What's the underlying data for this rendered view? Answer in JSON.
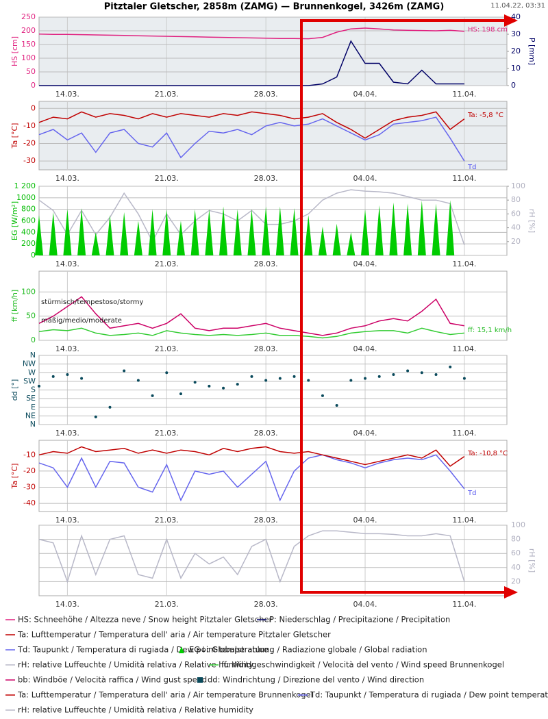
{
  "title": "Pitztaler Gletscher, 2858m (ZAMG) — Brunnenkogel, 3426m (ZAMG)",
  "timestamp": "11.04.22, 03:31",
  "chart_data": [
    {
      "type": "line",
      "x": [
        "12.03.",
        "13.03.",
        "14.03.",
        "15.03.",
        "16.03.",
        "17.03.",
        "18.03.",
        "19.03.",
        "20.03.",
        "21.03.",
        "22.03.",
        "23.03.",
        "24.03.",
        "25.03.",
        "26.03.",
        "27.03.",
        "28.03.",
        "29.03.",
        "30.03.",
        "31.03.",
        "01.04.",
        "02.04.",
        "03.04.",
        "04.04.",
        "05.04.",
        "06.04.",
        "07.04.",
        "08.04.",
        "09.04.",
        "10.04.",
        "11.04."
      ],
      "xlim": [
        "12.03.",
        "14.04."
      ],
      "xticks": [
        "14.03.",
        "21.03.",
        "28.03.",
        "04.04.",
        "11.04."
      ],
      "ylabel": "HS [cm]",
      "ycolor": "#e0207f",
      "ylim": [
        0,
        250
      ],
      "yticks": [
        0,
        50,
        100,
        150,
        200,
        250
      ],
      "y2label": "P [mm]",
      "y2color": "#000066",
      "y2lim": [
        0,
        40
      ],
      "y2ticks": [
        0,
        10,
        20,
        30,
        40
      ],
      "grid": true,
      "background": "#e9edf0",
      "annotations": [
        {
          "text": "HS: 198 cm",
          "color": "#e0207f"
        }
      ],
      "series": [
        {
          "name": "HS: Schneehöhe / Altezza neve / Snow height  Pitztaler Gletscher",
          "color": "#e0207f",
          "style": "line",
          "values": [
            188,
            187,
            187,
            186,
            185,
            184,
            183,
            182,
            181,
            180,
            179,
            178,
            177,
            176,
            175,
            174,
            173,
            172,
            172,
            171,
            176,
            195,
            207,
            210,
            207,
            203,
            202,
            201,
            200,
            202,
            198
          ]
        },
        {
          "name": "P: Niederschlag / Precipitazione / Precipitation",
          "color": "#000066",
          "style": "line",
          "axis": "y2",
          "values": [
            0,
            0,
            0,
            0,
            0,
            0,
            0,
            0,
            0,
            0,
            0,
            0,
            0,
            0,
            0,
            0,
            0,
            0,
            0,
            0,
            1,
            5,
            26,
            13,
            13,
            2,
            1,
            9,
            1,
            1,
            1
          ]
        }
      ]
    },
    {
      "type": "line",
      "x": [
        "12.03.",
        "13.03.",
        "14.03.",
        "15.03.",
        "16.03.",
        "17.03.",
        "18.03.",
        "19.03.",
        "20.03.",
        "21.03.",
        "22.03.",
        "23.03.",
        "24.03.",
        "25.03.",
        "26.03.",
        "27.03.",
        "28.03.",
        "29.03.",
        "30.03.",
        "31.03.",
        "01.04.",
        "02.04.",
        "03.04.",
        "04.04.",
        "05.04.",
        "06.04.",
        "07.04.",
        "08.04.",
        "09.04.",
        "10.04.",
        "11.04."
      ],
      "xlim": [
        "12.03.",
        "14.04."
      ],
      "xticks": [
        "14.03.",
        "21.03.",
        "28.03.",
        "04.04.",
        "11.04."
      ],
      "ylabel": "Ta [°C]",
      "ycolor": "#c00000",
      "ylim": [
        -35,
        4
      ],
      "yticks": [
        -30,
        -20,
        -10,
        0
      ],
      "grid": true,
      "background": "#e9edf0",
      "annotations": [
        {
          "text": "Ta: -5,8 °C",
          "color": "#c00000"
        },
        {
          "text": "Td",
          "color": "#5555ee"
        }
      ],
      "series": [
        {
          "name": "Ta: Lufttemperatur / Temperatura dell' aria / Air temperature  Pitztaler Gletscher",
          "color": "#c00000",
          "style": "line",
          "values": [
            -8,
            -5,
            -6,
            -2,
            -5,
            -3,
            -4,
            -6,
            -3,
            -5,
            -3,
            -4,
            -5,
            -3,
            -4,
            -2,
            -3,
            -4,
            -6,
            -5,
            -3,
            -8,
            -12,
            -17,
            -12,
            -7,
            -5,
            -4,
            -2,
            -12,
            -6
          ]
        },
        {
          "name": "Td: Taupunkt / Temperatura di rugiada / Dew point temperature",
          "color": "#6666ee",
          "style": "line",
          "values": [
            -15,
            -12,
            -18,
            -14,
            -25,
            -14,
            -12,
            -20,
            -22,
            -14,
            -28,
            -20,
            -13,
            -14,
            -12,
            -15,
            -10,
            -8,
            -10,
            -9,
            -6,
            -10,
            -14,
            -18,
            -15,
            -9,
            -8,
            -7,
            -5,
            -17,
            -30
          ]
        }
      ]
    },
    {
      "type": "line",
      "x": [
        "12.03.",
        "13.03.",
        "14.03.",
        "15.03.",
        "16.03.",
        "17.03.",
        "18.03.",
        "19.03.",
        "20.03.",
        "21.03.",
        "22.03.",
        "23.03.",
        "24.03.",
        "25.03.",
        "26.03.",
        "27.03.",
        "28.03.",
        "29.03.",
        "30.03.",
        "31.03.",
        "01.04.",
        "02.04.",
        "03.04.",
        "04.04.",
        "05.04.",
        "06.04.",
        "07.04.",
        "08.04.",
        "09.04.",
        "10.04.",
        "11.04."
      ],
      "xlim": [
        "12.03.",
        "14.04."
      ],
      "xticks": [
        "14.03.",
        "21.03.",
        "28.03.",
        "04.04.",
        "11.04."
      ],
      "ylabel": "EG [W/m²]",
      "ycolor": "#00bb00",
      "ylim": [
        0,
        1200
      ],
      "yticks": [
        0,
        200,
        400,
        600,
        800,
        1000,
        {
          "value": 1200,
          "label": "1 200"
        }
      ],
      "y2label": "rH [%]",
      "y2color": "#b0b0c0",
      "y2lim": [
        0,
        100
      ],
      "y2ticks": [
        20,
        40,
        60,
        80,
        100
      ],
      "grid": true,
      "background": "#ffffff",
      "annotations": [],
      "series": [
        {
          "name": "EG↓: Globalstrahlung / Radiazione globale / Global radiation",
          "color": "#00cc00",
          "style": "spike",
          "values": [
            700,
            750,
            800,
            820,
            400,
            700,
            750,
            600,
            800,
            800,
            600,
            800,
            800,
            850,
            800,
            800,
            850,
            850,
            820,
            700,
            500,
            550,
            400,
            800,
            870,
            920,
            900,
            950,
            900,
            960,
            0
          ]
        },
        {
          "name": "rH: relative Luffeuchte / Umidità relativa / Relative humidity",
          "color": "#b8b8c8",
          "style": "line",
          "axis": "y2",
          "values": [
            80,
            65,
            30,
            65,
            30,
            55,
            90,
            60,
            20,
            60,
            30,
            50,
            65,
            60,
            50,
            65,
            45,
            45,
            50,
            60,
            80,
            90,
            95,
            93,
            92,
            90,
            85,
            80,
            80,
            75,
            15
          ]
        }
      ]
    },
    {
      "type": "line",
      "x": [
        "12.03.",
        "13.03.",
        "14.03.",
        "15.03.",
        "16.03.",
        "17.03.",
        "18.03.",
        "19.03.",
        "20.03.",
        "21.03.",
        "22.03.",
        "23.03.",
        "24.03.",
        "25.03.",
        "26.03.",
        "27.03.",
        "28.03.",
        "29.03.",
        "30.03.",
        "31.03.",
        "01.04.",
        "02.04.",
        "03.04.",
        "04.04.",
        "05.04.",
        "06.04.",
        "07.04.",
        "08.04.",
        "09.04.",
        "10.04.",
        "11.04."
      ],
      "xlim": [
        "12.03.",
        "14.04."
      ],
      "xticks": [
        "14.03.",
        "21.03.",
        "28.03.",
        "04.04.",
        "11.04."
      ],
      "ylabel": "ff [km/h]",
      "ycolor": "#22bb22",
      "ylim": [
        0,
        143
      ],
      "yticks": [
        0,
        50,
        100
      ],
      "grid": true,
      "background": "#ffffff",
      "annotations": [
        {
          "text": "stürmisch/tempestoso/stormy",
          "color": "#222222"
        },
        {
          "text": "mäßig/medio/moderate",
          "color": "#222222"
        },
        {
          "text": "ff: 15,1 km/h",
          "color": "#22bb22"
        }
      ],
      "series": [
        {
          "name": "ff: Windgeschwindigkeit / Velocità del vento / Wind speed  Brunnenkogel",
          "color": "#33cc33",
          "style": "line",
          "values": [
            18,
            22,
            20,
            25,
            15,
            10,
            12,
            15,
            10,
            20,
            15,
            12,
            10,
            12,
            10,
            12,
            15,
            10,
            10,
            8,
            5,
            8,
            15,
            18,
            20,
            20,
            15,
            25,
            18,
            12,
            15
          ]
        },
        {
          "name": "bb: Windböe / Velocità raffica / Wind gust speed",
          "color": "#cc0066",
          "style": "line",
          "values": [
            35,
            50,
            70,
            90,
            55,
            25,
            30,
            35,
            25,
            35,
            55,
            25,
            20,
            25,
            25,
            30,
            35,
            25,
            20,
            15,
            10,
            15,
            25,
            30,
            40,
            45,
            40,
            60,
            85,
            35,
            30
          ]
        }
      ]
    },
    {
      "type": "scatter",
      "x": [
        "12.03.",
        "13.03.",
        "14.03.",
        "15.03.",
        "16.03.",
        "17.03.",
        "18.03.",
        "19.03.",
        "20.03.",
        "21.03.",
        "22.03.",
        "23.03.",
        "24.03.",
        "25.03.",
        "26.03.",
        "27.03.",
        "28.03.",
        "29.03.",
        "30.03.",
        "31.03.",
        "01.04.",
        "02.04.",
        "03.04.",
        "04.04.",
        "05.04.",
        "06.04.",
        "07.04.",
        "08.04.",
        "09.04.",
        "10.04.",
        "11.04."
      ],
      "xlim": [
        "12.03.",
        "14.04."
      ],
      "xticks": [
        "14.03.",
        "21.03.",
        "28.03.",
        "04.04.",
        "11.04."
      ],
      "ylabel": "dd [°]",
      "ycolor": "#0a4a5c",
      "ylim": [
        0,
        360
      ],
      "yticks": [
        {
          "value": 0,
          "label": "N"
        },
        {
          "value": 45,
          "label": "NE"
        },
        {
          "value": 90,
          "label": "E"
        },
        {
          "value": 135,
          "label": "SE"
        },
        {
          "value": 180,
          "label": "S"
        },
        {
          "value": 225,
          "label": "SW"
        },
        {
          "value": 270,
          "label": "W"
        },
        {
          "value": 315,
          "label": "NW"
        },
        {
          "value": 360,
          "label": "N"
        }
      ],
      "grid": true,
      "background": "#ffffff",
      "annotations": [],
      "series": [
        {
          "name": "dd: Windrichtung / Direzione del vento / Wind direction",
          "color": "#0a4a5c",
          "style": "dots",
          "values": [
            200,
            250,
            260,
            240,
            40,
            90,
            280,
            230,
            150,
            270,
            160,
            220,
            200,
            190,
            210,
            250,
            230,
            240,
            250,
            230,
            150,
            100,
            230,
            240,
            250,
            260,
            280,
            270,
            260,
            300,
            240
          ]
        }
      ]
    },
    {
      "type": "line",
      "x": [
        "12.03.",
        "13.03.",
        "14.03.",
        "15.03.",
        "16.03.",
        "17.03.",
        "18.03.",
        "19.03.",
        "20.03.",
        "21.03.",
        "22.03.",
        "23.03.",
        "24.03.",
        "25.03.",
        "26.03.",
        "27.03.",
        "28.03.",
        "29.03.",
        "30.03.",
        "31.03.",
        "01.04.",
        "02.04.",
        "03.04.",
        "04.04.",
        "05.04.",
        "06.04.",
        "07.04.",
        "08.04.",
        "09.04.",
        "10.04.",
        "11.04."
      ],
      "xlim": [
        "12.03.",
        "14.04."
      ],
      "xticks": [
        "14.03.",
        "21.03.",
        "28.03.",
        "04.04.",
        "11.04."
      ],
      "ylabel": "Ta [°C]",
      "ycolor": "#c00000",
      "ylim": [
        -45,
        -1
      ],
      "yticks": [
        -40,
        -30,
        -20,
        -10
      ],
      "grid": true,
      "background": "#ffffff",
      "annotations": [
        {
          "text": "Ta: -10,8 °C",
          "color": "#c00000"
        },
        {
          "text": "Td",
          "color": "#5555ee"
        }
      ],
      "series": [
        {
          "name": "Ta: Lufttemperatur / Temperatura dell' aria / Air temperature  Brunnenkogel",
          "color": "#c00000",
          "style": "line",
          "values": [
            -10,
            -8,
            -9,
            -5,
            -8,
            -7,
            -6,
            -9,
            -7,
            -9,
            -7,
            -8,
            -10,
            -6,
            -8,
            -6,
            -5,
            -8,
            -9,
            -8,
            -10,
            -12,
            -14,
            -16,
            -14,
            -12,
            -10,
            -12,
            -7,
            -17,
            -11
          ]
        },
        {
          "name": "Td: Taupunkt / Temperatura di rugiada / Dew point temperature",
          "color": "#6666ee",
          "style": "line",
          "values": [
            -15,
            -18,
            -30,
            -12,
            -30,
            -14,
            -15,
            -30,
            -33,
            -16,
            -38,
            -20,
            -22,
            -20,
            -30,
            -22,
            -14,
            -38,
            -20,
            -12,
            -10,
            -13,
            -15,
            -18,
            -15,
            -13,
            -12,
            -13,
            -10,
            -20,
            -31
          ]
        }
      ]
    },
    {
      "type": "line",
      "x": [
        "12.03.",
        "13.03.",
        "14.03.",
        "15.03.",
        "16.03.",
        "17.03.",
        "18.03.",
        "19.03.",
        "20.03.",
        "21.03.",
        "22.03.",
        "23.03.",
        "24.03.",
        "25.03.",
        "26.03.",
        "27.03.",
        "28.03.",
        "29.03.",
        "30.03.",
        "31.03.",
        "01.04.",
        "02.04.",
        "03.04.",
        "04.04.",
        "05.04.",
        "06.04.",
        "07.04.",
        "08.04.",
        "09.04.",
        "10.04.",
        "11.04."
      ],
      "xlim": [
        "12.03.",
        "14.04."
      ],
      "xticks": [
        "14.03.",
        "21.03.",
        "28.03.",
        "04.04.",
        "11.04."
      ],
      "y2label": "rH [%]",
      "y2color": "#b0b0c0",
      "y2lim": [
        0,
        100
      ],
      "y2ticks": [
        20,
        40,
        60,
        80,
        100
      ],
      "grid": true,
      "background": "#ffffff",
      "annotations": [],
      "series": [
        {
          "name": "rH: relative Luffeuchte / Umidità relativa / Relative humidity",
          "color": "#b8b8c8",
          "style": "line",
          "axis": "y2",
          "values": [
            80,
            75,
            20,
            85,
            30,
            80,
            85,
            30,
            25,
            80,
            25,
            60,
            45,
            55,
            30,
            70,
            80,
            20,
            70,
            85,
            92,
            92,
            90,
            88,
            88,
            87,
            85,
            85,
            88,
            85,
            20
          ]
        }
      ]
    }
  ]
}
